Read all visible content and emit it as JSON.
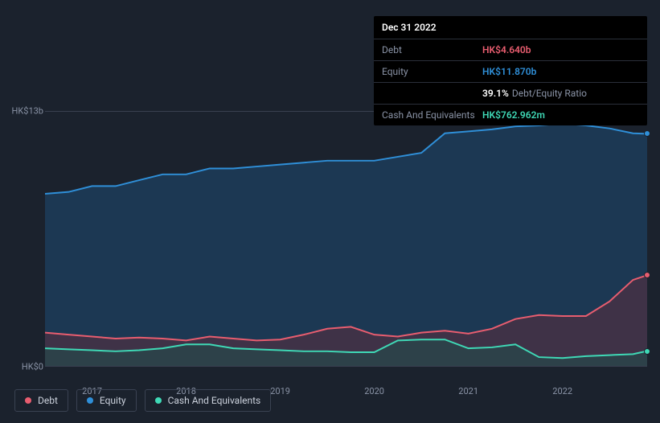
{
  "tooltip": {
    "date": "Dec 31 2022",
    "rows": [
      {
        "label": "Debt",
        "value": "HK$4.640b",
        "color": "#e85d6f"
      },
      {
        "label": "Equity",
        "value": "HK$11.870b",
        "color": "#2f8fd8"
      },
      {
        "label": "",
        "ratio_pct": "39.1%",
        "ratio_label": "Debt/Equity Ratio",
        "is_ratio": true
      },
      {
        "label": "Cash And Equivalents",
        "value": "HK$762.962m",
        "color": "#3fd9b6"
      }
    ]
  },
  "chart": {
    "type": "area",
    "background_color": "#1b222d",
    "grid_color": "#394050",
    "text_color": "#8a93a6",
    "y_axis": {
      "min": 0,
      "max": 13,
      "ticks": [
        {
          "value": 0,
          "label": "HK$0"
        },
        {
          "value": 13,
          "label": "HK$13b"
        }
      ]
    },
    "x_axis": {
      "min": 2016.5,
      "max": 2022.9,
      "ticks": [
        {
          "value": 2017,
          "label": "2017"
        },
        {
          "value": 2018,
          "label": "2018"
        },
        {
          "value": 2019,
          "label": "2019"
        },
        {
          "value": 2020,
          "label": "2020"
        },
        {
          "value": 2021,
          "label": "2021"
        },
        {
          "value": 2022,
          "label": "2022"
        }
      ]
    },
    "series": [
      {
        "name": "Equity",
        "color": "#2f8fd8",
        "fill_color": "#1e4a73",
        "fill_opacity": 0.55,
        "line_width": 2,
        "x": [
          2016.5,
          2016.75,
          2017,
          2017.25,
          2017.5,
          2017.75,
          2018,
          2018.25,
          2018.5,
          2018.75,
          2019,
          2019.25,
          2019.5,
          2019.75,
          2020,
          2020.25,
          2020.5,
          2020.75,
          2021,
          2021.25,
          2021.5,
          2021.75,
          2022,
          2022.25,
          2022.5,
          2022.75,
          2022.9
        ],
        "y": [
          8.8,
          8.9,
          9.2,
          9.2,
          9.5,
          9.8,
          9.8,
          10.1,
          10.1,
          10.2,
          10.3,
          10.4,
          10.5,
          10.5,
          10.5,
          10.7,
          10.9,
          11.9,
          12.0,
          12.1,
          12.25,
          12.3,
          12.4,
          12.3,
          12.15,
          11.9,
          11.87
        ]
      },
      {
        "name": "Debt",
        "color": "#e85d6f",
        "fill_color": "#5c2d3e",
        "fill_opacity": 0.55,
        "line_width": 2,
        "x": [
          2016.5,
          2016.75,
          2017,
          2017.25,
          2017.5,
          2017.75,
          2018,
          2018.25,
          2018.5,
          2018.75,
          2019,
          2019.25,
          2019.5,
          2019.75,
          2020,
          2020.25,
          2020.5,
          2020.75,
          2021,
          2021.25,
          2021.5,
          2021.75,
          2022,
          2022.25,
          2022.5,
          2022.75,
          2022.9
        ],
        "y": [
          1.7,
          1.6,
          1.5,
          1.4,
          1.45,
          1.4,
          1.3,
          1.5,
          1.4,
          1.3,
          1.35,
          1.6,
          1.9,
          2.0,
          1.6,
          1.5,
          1.7,
          1.8,
          1.65,
          1.9,
          2.4,
          2.6,
          2.55,
          2.55,
          3.3,
          4.4,
          4.64
        ]
      },
      {
        "name": "Cash And Equivalents",
        "color": "#3fd9b6",
        "fill_color": "#1f4f4a",
        "fill_opacity": 0.55,
        "line_width": 2,
        "x": [
          2016.5,
          2016.75,
          2017,
          2017.25,
          2017.5,
          2017.75,
          2018,
          2018.25,
          2018.5,
          2018.75,
          2019,
          2019.25,
          2019.5,
          2019.75,
          2020,
          2020.25,
          2020.5,
          2020.75,
          2021,
          2021.25,
          2021.5,
          2021.75,
          2022,
          2022.25,
          2022.5,
          2022.75,
          2022.9
        ],
        "y": [
          0.9,
          0.85,
          0.8,
          0.75,
          0.8,
          0.9,
          1.1,
          1.1,
          0.9,
          0.85,
          0.8,
          0.75,
          0.75,
          0.7,
          0.7,
          1.3,
          1.35,
          1.35,
          0.9,
          0.95,
          1.1,
          0.45,
          0.4,
          0.5,
          0.55,
          0.6,
          0.76
        ]
      }
    ],
    "end_markers": [
      {
        "series": "Equity",
        "color": "#2f8fd8"
      },
      {
        "series": "Debt",
        "color": "#e85d6f"
      },
      {
        "series": "Cash And Equivalents",
        "color": "#3fd9b6"
      }
    ]
  },
  "legend": [
    {
      "label": "Debt",
      "color": "#e85d6f"
    },
    {
      "label": "Equity",
      "color": "#2f8fd8"
    },
    {
      "label": "Cash And Equivalents",
      "color": "#3fd9b6"
    }
  ]
}
